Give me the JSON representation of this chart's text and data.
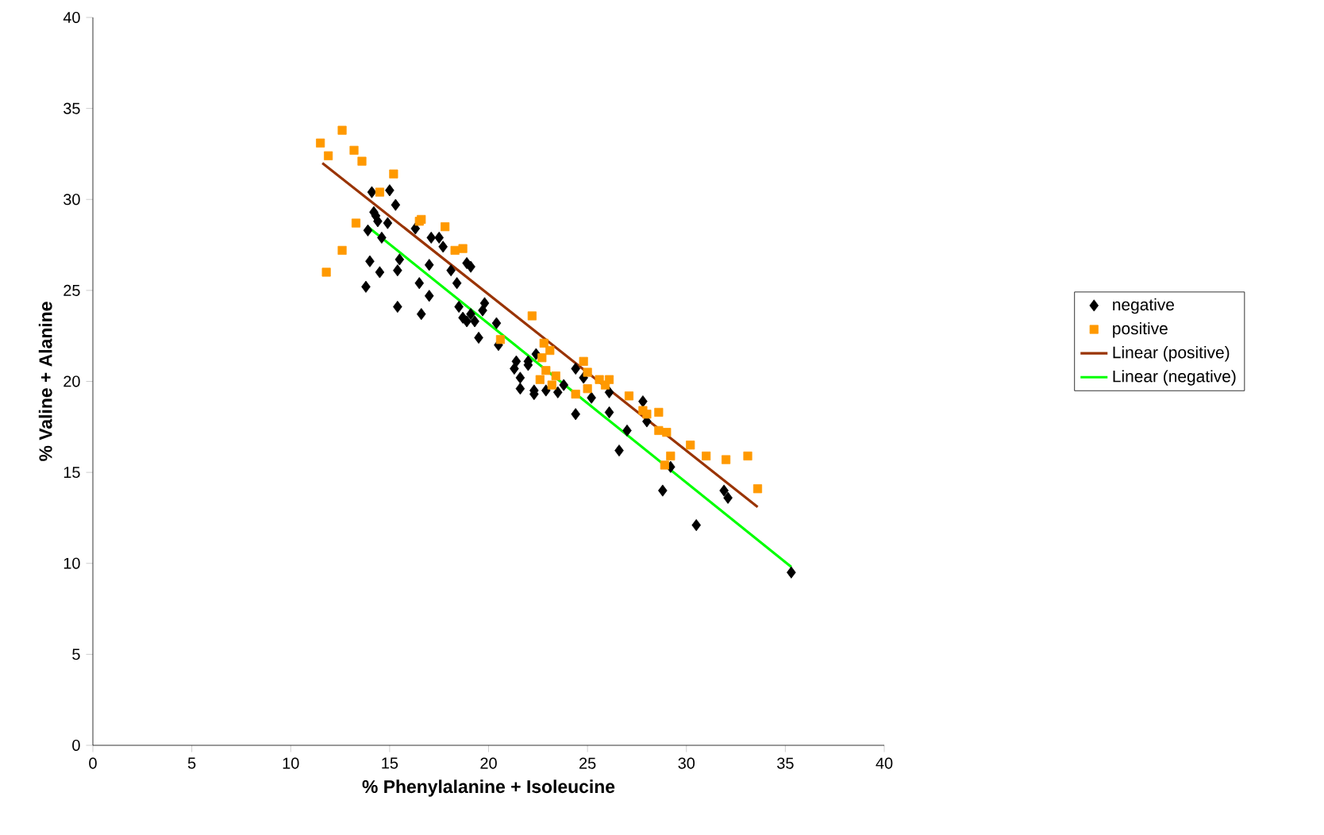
{
  "chart_data": {
    "type": "scatter",
    "xlabel": "% Phenylalanine + Isoleucine",
    "ylabel": "% Valine + Alanine",
    "xlim": [
      0,
      40
    ],
    "ylim": [
      0,
      40
    ],
    "xticks": [
      0,
      5,
      10,
      15,
      20,
      25,
      30,
      35,
      40
    ],
    "yticks": [
      0,
      5,
      10,
      15,
      20,
      25,
      30,
      35,
      40
    ],
    "grid": false,
    "legend": "right",
    "series": [
      {
        "name": "negative",
        "color": "#000000",
        "marker": "diamond",
        "x": [
          14.1,
          14.2,
          14.4,
          14.3,
          13.9,
          14.6,
          15.0,
          15.3,
          14.9,
          14.0,
          13.8,
          14.5,
          15.4,
          15.5,
          15.4,
          16.3,
          16.5,
          16.6,
          17.0,
          17.0,
          17.1,
          17.5,
          17.7,
          18.1,
          18.4,
          18.9,
          19.1,
          18.5,
          18.7,
          18.9,
          19.1,
          19.3,
          19.5,
          19.8,
          19.7,
          20.4,
          20.5,
          21.4,
          21.3,
          21.6,
          21.6,
          22.0,
          22.0,
          22.4,
          22.3,
          22.3,
          22.9,
          23.8,
          23.5,
          24.4,
          24.8,
          24.4,
          25.2,
          26.1,
          26.1,
          26.6,
          27.0,
          27.8,
          28.0,
          28.8,
          29.2,
          30.5,
          31.9,
          32.1,
          35.3
        ],
        "values": [
          30.4,
          29.3,
          28.8,
          29.1,
          28.3,
          27.9,
          30.5,
          29.7,
          28.7,
          26.6,
          25.2,
          26.0,
          26.1,
          26.7,
          24.1,
          28.4,
          25.4,
          23.7,
          26.4,
          24.7,
          27.9,
          27.9,
          27.4,
          26.1,
          25.4,
          26.5,
          26.3,
          24.1,
          23.5,
          23.3,
          23.7,
          23.3,
          22.4,
          24.3,
          23.9,
          23.2,
          22.0,
          21.1,
          20.7,
          20.2,
          19.6,
          21.1,
          20.9,
          21.5,
          19.5,
          19.3,
          19.5,
          19.8,
          19.4,
          20.7,
          20.2,
          18.2,
          19.1,
          19.4,
          18.3,
          16.2,
          17.3,
          18.9,
          17.8,
          14.0,
          15.3,
          12.1,
          14.0,
          13.6,
          9.5
        ]
      },
      {
        "name": "positive",
        "color": "#ff9900",
        "marker": "square",
        "x": [
          11.5,
          11.9,
          12.6,
          13.2,
          13.6,
          11.8,
          12.6,
          13.3,
          14.5,
          15.2,
          16.5,
          16.6,
          17.8,
          18.3,
          18.7,
          22.2,
          20.6,
          22.8,
          23.1,
          22.7,
          22.9,
          22.6,
          23.2,
          23.4,
          24.4,
          24.8,
          25.0,
          25.0,
          25.6,
          25.9,
          26.1,
          27.1,
          27.8,
          28.0,
          28.6,
          28.6,
          29.0,
          29.2,
          28.9,
          30.2,
          31.0,
          32.0,
          33.1,
          33.6
        ],
        "values": [
          33.1,
          32.4,
          33.8,
          32.7,
          32.1,
          26.0,
          27.2,
          28.7,
          30.4,
          31.4,
          28.8,
          28.9,
          28.5,
          27.2,
          27.3,
          23.6,
          22.3,
          22.1,
          21.7,
          21.3,
          20.6,
          20.1,
          19.8,
          20.3,
          19.3,
          21.1,
          20.5,
          19.6,
          20.1,
          19.8,
          20.1,
          19.2,
          18.4,
          18.2,
          18.3,
          17.3,
          17.2,
          15.9,
          15.4,
          16.5,
          15.9,
          15.7,
          15.9,
          14.1
        ]
      },
      {
        "name": "Linear (positive)",
        "type": "line",
        "color": "#993300",
        "marker": "none",
        "x": [
          11.6,
          33.6
        ],
        "values": [
          32.0,
          13.1
        ]
      },
      {
        "name": "Linear (negative)",
        "type": "line",
        "color": "#00ff00",
        "marker": "none",
        "x": [
          13.9,
          35.3
        ],
        "values": [
          28.5,
          9.8
        ]
      }
    ]
  }
}
